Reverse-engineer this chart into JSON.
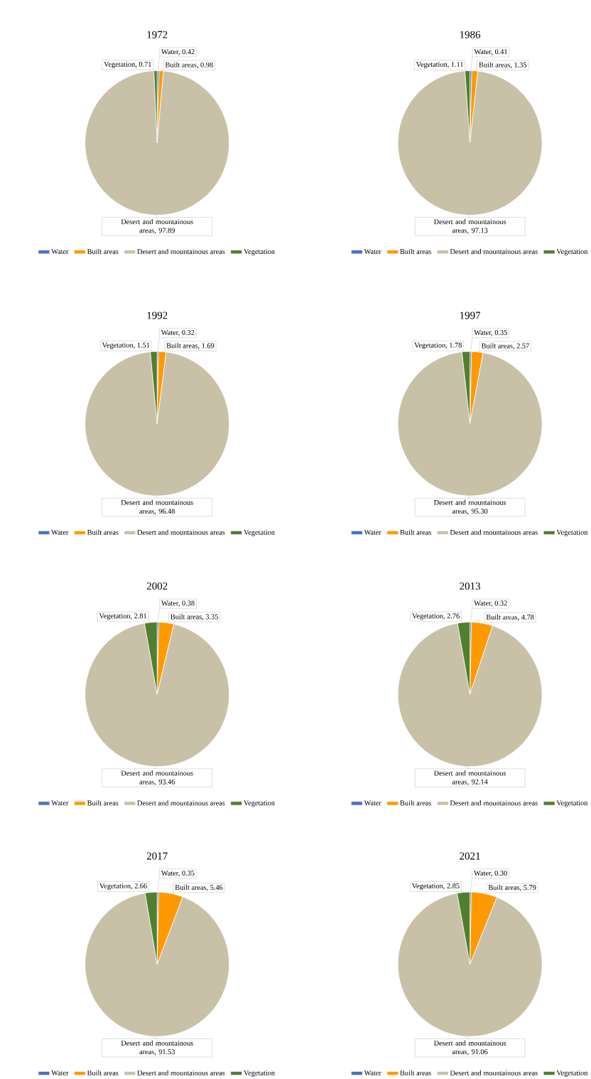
{
  "chart_data": [
    {
      "type": "pie",
      "title": "1972",
      "categories": [
        "Water",
        "Built areas",
        "Desert and mountainous areas",
        "Vegetation"
      ],
      "values": [
        0.42,
        0.98,
        97.89,
        0.71
      ],
      "value_labels": [
        "Water, 0.42",
        "Built areas, 0.98",
        "Desert and mountainous areas, 97.89",
        "Vegetation, 0.71"
      ],
      "colors": [
        "#4472c4",
        "#ff9900",
        "#c9c0a8",
        "#4f7f2f"
      ],
      "legend": "bottom"
    },
    {
      "type": "pie",
      "title": "1986",
      "categories": [
        "Water",
        "Built areas",
        "Desert and mountainous areas",
        "Vegetation"
      ],
      "values": [
        0.41,
        1.35,
        97.13,
        1.11
      ],
      "value_labels": [
        "Water, 0.41",
        "Built areas, 1.35",
        "Desert and mountainous areas, 97.13",
        "Vegetation, 1.11"
      ],
      "colors": [
        "#4472c4",
        "#ff9900",
        "#c9c0a8",
        "#4f7f2f"
      ],
      "legend": "bottom"
    },
    {
      "type": "pie",
      "title": "1992",
      "categories": [
        "Water",
        "Built areas",
        "Desert and mountainous areas",
        "Vegetation"
      ],
      "values": [
        0.32,
        1.69,
        96.48,
        1.51
      ],
      "value_labels": [
        "Water, 0.32",
        "Built areas, 1.69",
        "Desert and mountainous areas, 96.48",
        "Vegetation, 1.51"
      ],
      "colors": [
        "#4472c4",
        "#ff9900",
        "#c9c0a8",
        "#4f7f2f"
      ],
      "legend": "bottom"
    },
    {
      "type": "pie",
      "title": "1997",
      "categories": [
        "Water",
        "Built areas",
        "Desert and mountainous areas",
        "Vegetation"
      ],
      "values": [
        0.35,
        2.57,
        95.3,
        1.78
      ],
      "value_labels": [
        "Water, 0.35",
        "Built areas, 2.57",
        "Desert and mountainous areas, 95.30",
        "Vegetation, 1.78"
      ],
      "colors": [
        "#4472c4",
        "#ff9900",
        "#c9c0a8",
        "#4f7f2f"
      ],
      "legend": "bottom"
    },
    {
      "type": "pie",
      "title": "2002",
      "categories": [
        "Water",
        "Built areas",
        "Desert and mountainous areas",
        "Vegetation"
      ],
      "values": [
        0.38,
        3.35,
        93.46,
        2.81
      ],
      "value_labels": [
        "Water, 0.38",
        "Built areas, 3.35",
        "Desert and mountainous areas, 93.46",
        "Vegetation, 2.81"
      ],
      "colors": [
        "#4472c4",
        "#ff9900",
        "#c9c0a8",
        "#4f7f2f"
      ],
      "legend": "bottom"
    },
    {
      "type": "pie",
      "title": "2013",
      "categories": [
        "Water",
        "Built areas",
        "Desert and mountainous areas",
        "Vegetation"
      ],
      "values": [
        0.32,
        4.78,
        92.14,
        2.76
      ],
      "value_labels": [
        "Water, 0.32",
        "Built areas, 4.78",
        "Desert and mountainous areas, 92.14",
        "Vegetation, 2.76"
      ],
      "colors": [
        "#4472c4",
        "#ff9900",
        "#c9c0a8",
        "#4f7f2f"
      ],
      "legend": "bottom"
    },
    {
      "type": "pie",
      "title": "2017",
      "categories": [
        "Water",
        "Built areas",
        "Desert and mountainous areas",
        "Vegetation"
      ],
      "values": [
        0.35,
        5.46,
        91.53,
        2.66
      ],
      "value_labels": [
        "Water, 0.35",
        "Built areas, 5.46",
        "Desert and mountainous areas, 91.53",
        "Vegetation, 2.66"
      ],
      "colors": [
        "#4472c4",
        "#ff9900",
        "#c9c0a8",
        "#4f7f2f"
      ],
      "legend": "bottom"
    },
    {
      "type": "pie",
      "title": "2021",
      "categories": [
        "Water",
        "Built areas",
        "Desert and mountainous areas",
        "Vegetation"
      ],
      "values": [
        0.3,
        5.79,
        91.06,
        2.85
      ],
      "value_labels": [
        "Water, 0.30",
        "Built areas, 5.79",
        "Desert and mountainous areas, 91.06",
        "Vegetation, 2.85"
      ],
      "colors": [
        "#4472c4",
        "#ff9900",
        "#c9c0a8",
        "#4f7f2f"
      ],
      "legend": "bottom"
    }
  ]
}
